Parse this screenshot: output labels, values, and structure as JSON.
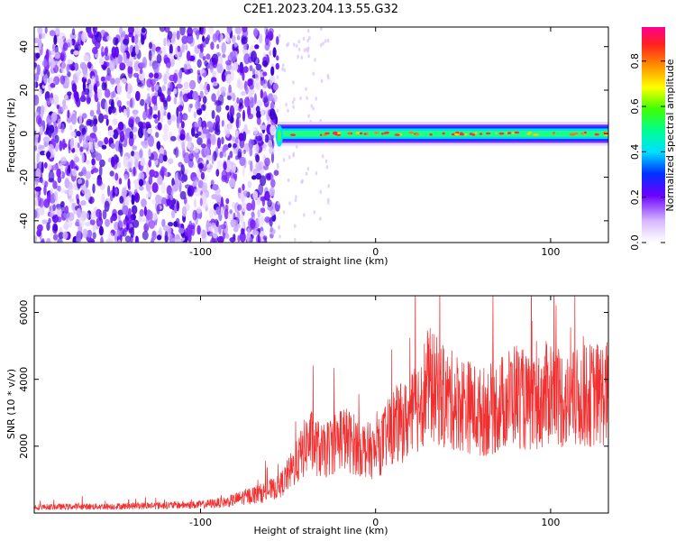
{
  "chart_data": [
    {
      "type": "heatmap",
      "title": "C2E1.2023.204.13.55.G32",
      "xlabel": "Height of straight line (km)",
      "ylabel": "Frequency (Hz)",
      "xlim": [
        -195,
        133
      ],
      "ylim": [
        -50,
        49
      ],
      "x_ticks": [
        -100,
        0,
        100
      ],
      "y_ticks": [
        -40,
        -20,
        0,
        20,
        40
      ],
      "colorbar": {
        "label": "Normalized spectral amplitude",
        "range": [
          0.0,
          0.95
        ],
        "ticks": [
          "0.0",
          "0.2",
          "0.4",
          "0.6",
          "0.8"
        ]
      },
      "features": {
        "noise_region_x": [
          -195,
          -56
        ],
        "signal_band_center_hz": 0,
        "signal_band_halfwidth_hz": 3,
        "signal_start_x": -56
      }
    },
    {
      "type": "line",
      "xlabel": "Height of straight line (km)",
      "ylabel": "SNR (10 * v/v)",
      "xlim": [
        -195,
        133
      ],
      "ylim": [
        0,
        6500
      ],
      "x_ticks": [
        -100,
        0,
        100
      ],
      "y_ticks": [
        2000,
        4000,
        6000
      ],
      "color": "#f03030",
      "envelope": {
        "x": [
          -195,
          -150,
          -100,
          -85,
          -75,
          -65,
          -55,
          -45,
          -38,
          -30,
          -20,
          -10,
          0,
          10,
          20,
          30,
          40,
          50,
          60,
          70,
          80,
          90,
          100,
          110,
          120,
          133
        ],
        "y": [
          180,
          200,
          250,
          330,
          480,
          600,
          780,
          1500,
          2200,
          1800,
          2300,
          2000,
          1800,
          2600,
          2800,
          3900,
          3400,
          3300,
          3000,
          3200,
          3600,
          3100,
          3700,
          3300,
          3500,
          3600
        ]
      }
    }
  ]
}
